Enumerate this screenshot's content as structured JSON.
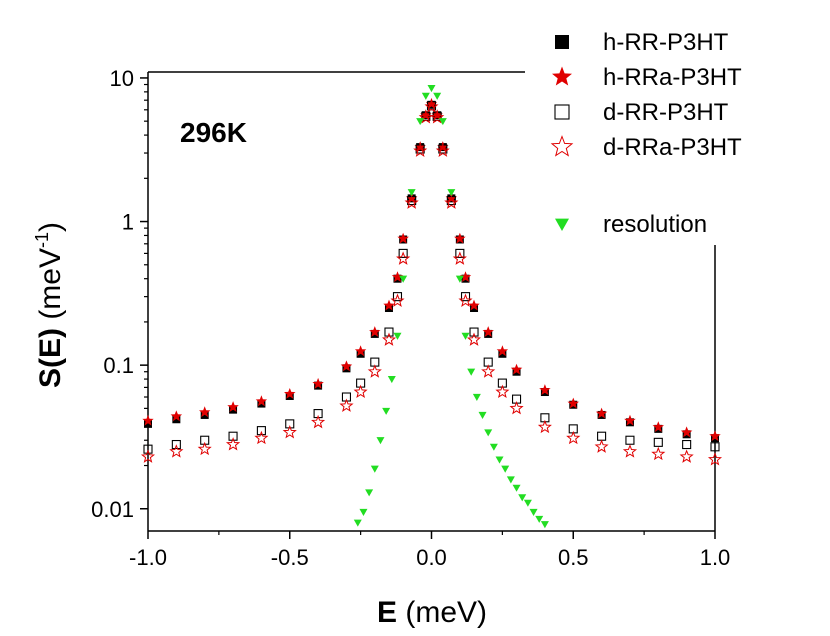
{
  "chart_data": {
    "type": "scatter",
    "title": "",
    "annotation": "296K",
    "xlabel": {
      "bold": "E",
      "rest": " (meV)"
    },
    "ylabel": {
      "bold": "S(E)",
      "rest": " (meV",
      "sup": "-1",
      "end": ")"
    },
    "xlim": [
      -1.0,
      1.0
    ],
    "ylim": [
      0.007,
      11
    ],
    "yscale": "log",
    "x_ticks": [
      -1.0,
      -0.5,
      0.0,
      0.5,
      1.0
    ],
    "x_tick_labels": [
      "-1.0",
      "-0.5",
      "0.0",
      "0.5",
      "1.0"
    ],
    "y_ticks": [
      0.01,
      0.1,
      1,
      10
    ],
    "y_tick_labels": [
      "0.01",
      "0.1",
      "1",
      "10"
    ],
    "legend_position": "top-right",
    "series": [
      {
        "name": "h-RR-P3HT",
        "marker": "square-filled",
        "color": "#000000",
        "x": [
          -1.0,
          -0.9,
          -0.8,
          -0.7,
          -0.6,
          -0.5,
          -0.4,
          -0.3,
          -0.25,
          -0.2,
          -0.15,
          -0.12,
          -0.1,
          -0.07,
          -0.04,
          -0.02,
          0.0,
          0.02,
          0.04,
          0.07,
          0.1,
          0.12,
          0.15,
          0.2,
          0.25,
          0.3,
          0.4,
          0.5,
          0.6,
          0.7,
          0.8,
          0.9,
          1.0
        ],
        "y": [
          0.039,
          0.042,
          0.045,
          0.049,
          0.054,
          0.061,
          0.072,
          0.095,
          0.12,
          0.165,
          0.25,
          0.4,
          0.75,
          1.45,
          3.3,
          5.5,
          6.5,
          5.5,
          3.3,
          1.45,
          0.75,
          0.4,
          0.25,
          0.165,
          0.12,
          0.09,
          0.065,
          0.053,
          0.045,
          0.04,
          0.036,
          0.033,
          0.031
        ]
      },
      {
        "name": "h-RRa-P3HT",
        "marker": "star-filled",
        "color": "#e00000",
        "x": [
          -1.0,
          -0.9,
          -0.8,
          -0.7,
          -0.6,
          -0.5,
          -0.4,
          -0.3,
          -0.25,
          -0.2,
          -0.15,
          -0.12,
          -0.1,
          -0.07,
          -0.04,
          -0.02,
          0.0,
          0.02,
          0.04,
          0.07,
          0.1,
          0.12,
          0.15,
          0.2,
          0.25,
          0.3,
          0.4,
          0.5,
          0.6,
          0.7,
          0.8,
          0.9,
          1.0
        ],
        "y": [
          0.041,
          0.044,
          0.047,
          0.051,
          0.056,
          0.063,
          0.074,
          0.098,
          0.125,
          0.17,
          0.26,
          0.41,
          0.76,
          1.45,
          3.3,
          5.5,
          6.6,
          5.5,
          3.3,
          1.45,
          0.76,
          0.41,
          0.26,
          0.17,
          0.125,
          0.093,
          0.067,
          0.054,
          0.046,
          0.041,
          0.037,
          0.034,
          0.032
        ]
      },
      {
        "name": "d-RR-P3HT",
        "marker": "square-open",
        "color": "#000000",
        "x": [
          -1.0,
          -0.9,
          -0.8,
          -0.7,
          -0.6,
          -0.5,
          -0.4,
          -0.3,
          -0.25,
          -0.2,
          -0.15,
          -0.12,
          -0.1,
          -0.07,
          -0.04,
          -0.02,
          0.0,
          0.02,
          0.04,
          0.07,
          0.1,
          0.12,
          0.15,
          0.2,
          0.25,
          0.3,
          0.4,
          0.5,
          0.6,
          0.7,
          0.8,
          0.9,
          1.0
        ],
        "y": [
          0.026,
          0.028,
          0.03,
          0.032,
          0.035,
          0.039,
          0.046,
          0.06,
          0.075,
          0.105,
          0.17,
          0.3,
          0.6,
          1.4,
          3.2,
          5.4,
          6.4,
          5.4,
          3.2,
          1.4,
          0.6,
          0.3,
          0.17,
          0.105,
          0.075,
          0.058,
          0.043,
          0.036,
          0.032,
          0.03,
          0.029,
          0.028,
          0.027
        ]
      },
      {
        "name": "d-RRa-P3HT",
        "marker": "star-open",
        "color": "#e00000",
        "x": [
          -1.0,
          -0.9,
          -0.8,
          -0.7,
          -0.6,
          -0.5,
          -0.4,
          -0.3,
          -0.25,
          -0.2,
          -0.15,
          -0.12,
          -0.1,
          -0.07,
          -0.04,
          -0.02,
          0.0,
          0.02,
          0.04,
          0.07,
          0.1,
          0.12,
          0.15,
          0.2,
          0.25,
          0.3,
          0.4,
          0.5,
          0.6,
          0.7,
          0.8,
          0.9,
          1.0
        ],
        "y": [
          0.023,
          0.025,
          0.026,
          0.028,
          0.031,
          0.034,
          0.04,
          0.052,
          0.065,
          0.09,
          0.15,
          0.28,
          0.55,
          1.35,
          3.1,
          5.3,
          6.3,
          5.3,
          3.1,
          1.35,
          0.55,
          0.28,
          0.15,
          0.09,
          0.065,
          0.05,
          0.037,
          0.031,
          0.027,
          0.025,
          0.024,
          0.023,
          0.022
        ]
      },
      {
        "name": "resolution",
        "marker": "triangle-down-filled",
        "color": "#22dd22",
        "x": [
          -0.26,
          -0.24,
          -0.22,
          -0.2,
          -0.18,
          -0.16,
          -0.14,
          -0.12,
          -0.1,
          -0.07,
          -0.04,
          -0.02,
          0.0,
          0.02,
          0.04,
          0.07,
          0.1,
          0.12,
          0.14,
          0.16,
          0.18,
          0.2,
          0.22,
          0.24,
          0.26,
          0.28,
          0.3,
          0.32,
          0.34,
          0.36,
          0.38,
          0.4
        ],
        "y": [
          0.008,
          0.0095,
          0.013,
          0.019,
          0.03,
          0.048,
          0.08,
          0.16,
          0.4,
          1.6,
          5.0,
          7.5,
          8.5,
          7.5,
          5.0,
          1.6,
          0.4,
          0.16,
          0.09,
          0.06,
          0.045,
          0.034,
          0.027,
          0.022,
          0.019,
          0.016,
          0.014,
          0.012,
          0.011,
          0.0095,
          0.0085,
          0.0078
        ]
      }
    ]
  }
}
